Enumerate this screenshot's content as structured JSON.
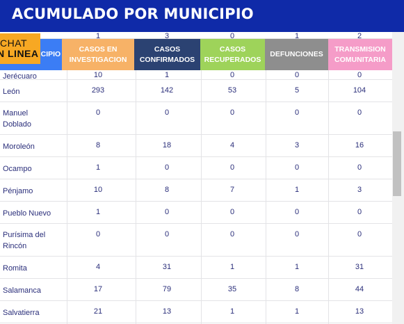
{
  "title": "ACUMULADO POR MUNICIPIO",
  "chat": {
    "line1": "CHAT",
    "line2": "N LINEA"
  },
  "header": {
    "municipio": "MUNICIPIO",
    "casos_investigacion": [
      "CASOS EN",
      "INVESTIGACION"
    ],
    "casos_confirmados": [
      "CASOS",
      "CONFIRMADOS"
    ],
    "casos_recuperados": [
      "CASOS",
      "RECUPERADOS"
    ],
    "defunciones": [
      "DEFUNCIONES"
    ],
    "transmision": [
      "TRANSMISION",
      "COMUNITARIA"
    ]
  },
  "header_colors": {
    "municipio": "#3b7df5",
    "investigacion": "#f7b267",
    "confirmados": "#2b4272",
    "recuperados": "#9ed35a",
    "defunciones": "#8e8e8e",
    "transmision": "#f59cc8"
  },
  "partial_top_row": [
    "1",
    "3",
    "0",
    "1",
    "2"
  ],
  "partial_second_row": {
    "name": "Jerécuaro",
    "values": [
      "10",
      "1",
      "0",
      "0",
      "0"
    ]
  },
  "rows": [
    {
      "name": "León",
      "values": [
        "293",
        "142",
        "53",
        "5",
        "104"
      ]
    },
    {
      "name": "Manuel Doblado",
      "values": [
        "0",
        "0",
        "0",
        "0",
        "0"
      ]
    },
    {
      "name": "Moroleón",
      "values": [
        "8",
        "18",
        "4",
        "3",
        "16"
      ]
    },
    {
      "name": "Ocampo",
      "values": [
        "1",
        "0",
        "0",
        "0",
        "0"
      ]
    },
    {
      "name": "Pénjamo",
      "values": [
        "10",
        "8",
        "7",
        "1",
        "3"
      ]
    },
    {
      "name": "Pueblo Nuevo",
      "values": [
        "1",
        "0",
        "0",
        "0",
        "0"
      ]
    },
    {
      "name": "Purísima del Rincón",
      "values": [
        "0",
        "0",
        "0",
        "0",
        "0"
      ]
    },
    {
      "name": "Romita",
      "values": [
        "4",
        "31",
        "1",
        "1",
        "31"
      ]
    },
    {
      "name": "Salamanca",
      "values": [
        "17",
        "79",
        "35",
        "8",
        "44"
      ]
    },
    {
      "name": "Salvatierra",
      "values": [
        "21",
        "13",
        "1",
        "1",
        "13"
      ]
    }
  ]
}
